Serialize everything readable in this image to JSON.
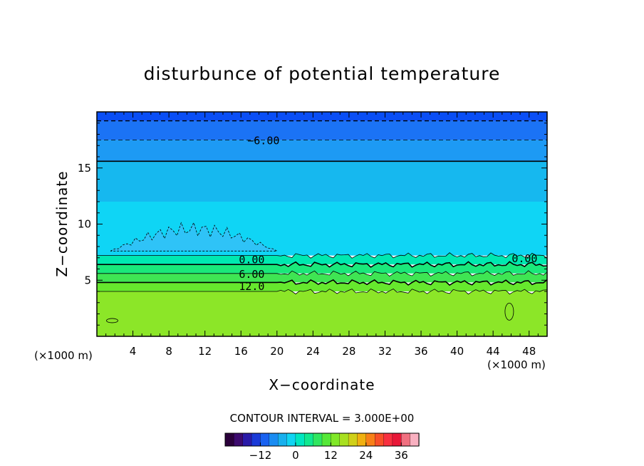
{
  "chart_data": {
    "type": "contour",
    "title": "disturbunce of potential temperature",
    "xlabel": "X−coordinate",
    "ylabel": "Z−coordinate",
    "x_unit_left": "(×1000 m)",
    "x_unit_right": "(×1000 m)",
    "xlim": [
      0,
      50
    ],
    "ylim": [
      0,
      20
    ],
    "x_ticks": [
      "4",
      "8",
      "12",
      "16",
      "20",
      "24",
      "28",
      "32",
      "36",
      "40",
      "44",
      "48"
    ],
    "y_ticks": [
      "5",
      "10",
      "15"
    ],
    "contour_interval_text": "CONTOUR INTERVAL = 3.000E+00",
    "contour_labels": [
      {
        "text": "−6.00",
        "x": 18.5,
        "z": 17.5
      },
      {
        "text": "0.00",
        "x": 17.2,
        "z": 6.9
      },
      {
        "text": "0.00",
        "x": 47.5,
        "z": 7.0
      },
      {
        "text": "6.00",
        "x": 17.2,
        "z": 5.6
      },
      {
        "text": "12.0",
        "x": 17.2,
        "z": 4.5
      }
    ],
    "bands": [
      {
        "value": -9,
        "z_bottom": 19.2,
        "z_top": 20,
        "color": "#0a4ef5"
      },
      {
        "value": -6,
        "z_bottom": 17.5,
        "z_top": 19.2,
        "color": "#1b73f5"
      },
      {
        "value": -3,
        "z_bottom": 15.6,
        "z_top": 17.5,
        "color": "#1d9af4"
      },
      {
        "value": 0,
        "z_bottom": 12,
        "z_top": 15.6,
        "color": "#16b8ef"
      },
      {
        "value": 1,
        "z_bottom": 7.2,
        "z_top": 12,
        "color": "#0fd5f5"
      },
      {
        "value": 3,
        "z_bottom": 6.4,
        "z_top": 7.2,
        "color": "#00e8b0"
      },
      {
        "value": 6,
        "z_bottom": 5.6,
        "z_top": 6.4,
        "color": "#1ae87a"
      },
      {
        "value": 9,
        "z_bottom": 4.8,
        "z_top": 5.6,
        "color": "#3fe553"
      },
      {
        "value": 12,
        "z_bottom": 4.0,
        "z_top": 4.8,
        "color": "#66e82d"
      },
      {
        "value": 15,
        "z_bottom": 0,
        "z_top": 4.0,
        "color": "#8ce628"
      }
    ],
    "colorbar": {
      "ticks": [
        "−12",
        "0",
        "12",
        "24",
        "36"
      ],
      "tick_values": [
        -12,
        0,
        12,
        24,
        36
      ],
      "range": [
        -24,
        42
      ],
      "colors": [
        "#2a003a",
        "#3d0a6e",
        "#2a1aa8",
        "#1a3ad8",
        "#1a62f0",
        "#1a8cf2",
        "#18b0ee",
        "#10d4f2",
        "#00e6c0",
        "#10e890",
        "#30e660",
        "#55e838",
        "#80e828",
        "#a8e020",
        "#d0d018",
        "#f0b010",
        "#f88018",
        "#f85028",
        "#f83040",
        "#e81838",
        "#f07080",
        "#f8b0c0"
      ]
    }
  }
}
